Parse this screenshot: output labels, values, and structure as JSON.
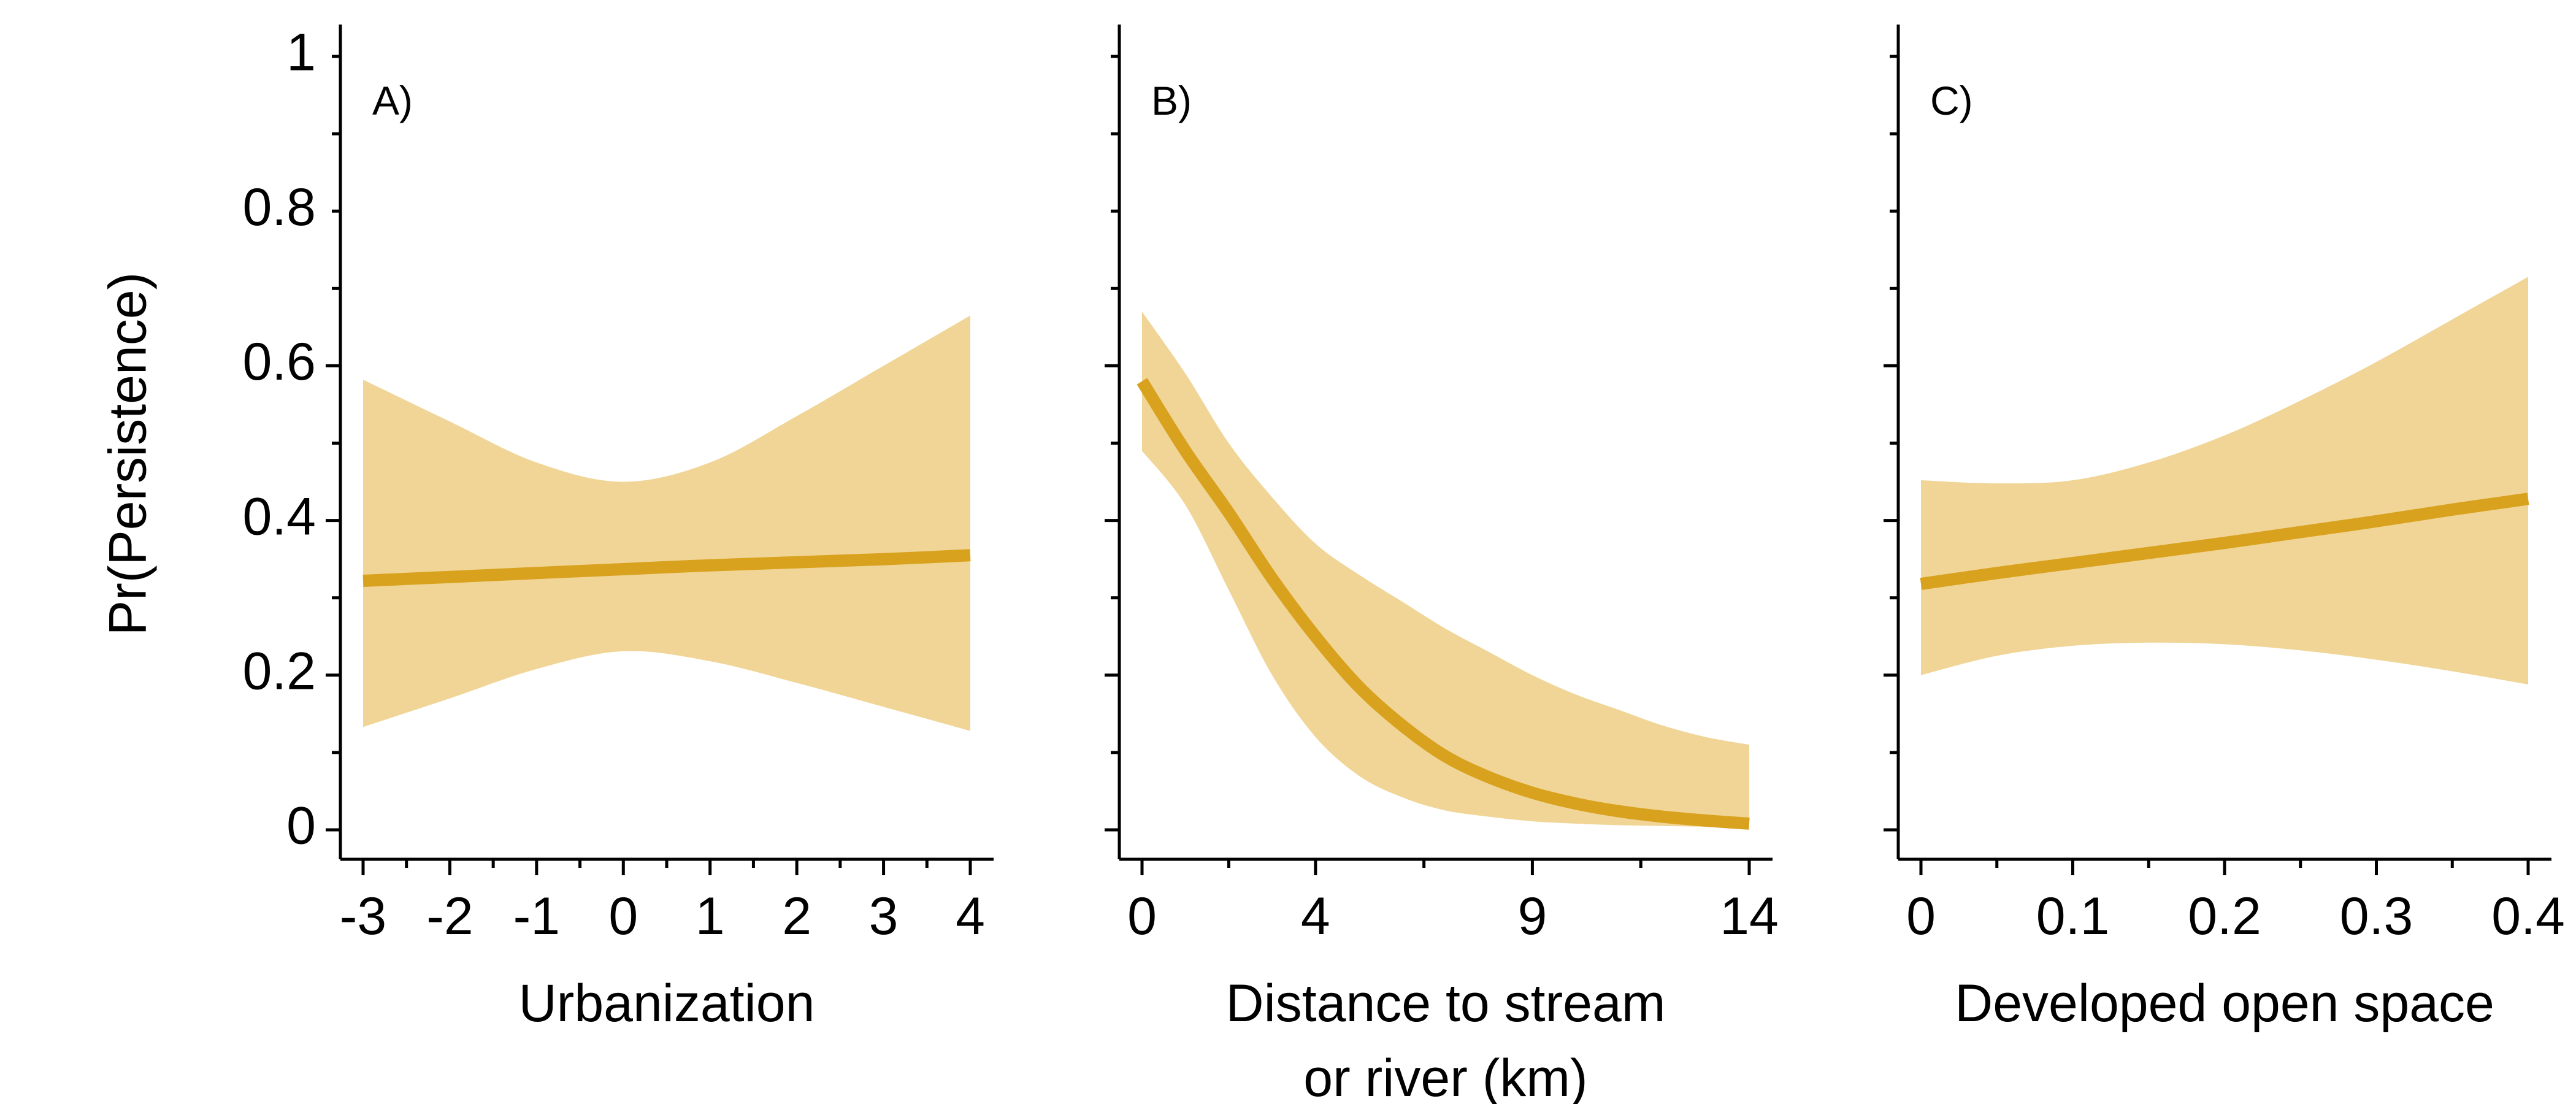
{
  "figure": {
    "ylabel": "Pr(Persistence)",
    "y_ticks": [
      0,
      0.2,
      0.4,
      0.6,
      0.8,
      1
    ],
    "y_tick_labels": [
      "0",
      "0.2",
      "0.4",
      "0.6",
      "0.8",
      "1"
    ],
    "colors": {
      "line": "#D9A21E",
      "band": "#F0D596",
      "axis": "#000000"
    }
  },
  "chart_data": [
    {
      "type": "line",
      "panel_label": "A)",
      "xlabel": [
        "Urbanization"
      ],
      "xlim": [
        -3,
        4
      ],
      "ylim": [
        0,
        1
      ],
      "x_ticks": [
        -3,
        -2,
        -1,
        0,
        1,
        2,
        3,
        4
      ],
      "x_tick_labels": [
        "-3",
        "-2",
        "-1",
        "0",
        "1",
        "2",
        "3",
        "4"
      ],
      "x": [
        -3,
        -2,
        -1,
        0,
        1,
        2,
        3,
        4
      ],
      "series": [
        {
          "values": [
            0.322,
            0.327,
            0.332,
            0.337,
            0.342,
            0.346,
            0.35,
            0.355
          ],
          "lower": [
            0.133,
            0.17,
            0.208,
            0.231,
            0.218,
            0.19,
            0.159,
            0.128
          ],
          "upper": [
            0.582,
            0.528,
            0.475,
            0.45,
            0.475,
            0.535,
            0.6,
            0.665
          ]
        }
      ]
    },
    {
      "type": "line",
      "panel_label": "B)",
      "xlabel": [
        "Distance to stream",
        "or river (km)"
      ],
      "xlim": [
        0,
        14
      ],
      "ylim": [
        0,
        1
      ],
      "x_ticks": [
        0,
        4,
        9,
        14
      ],
      "x_tick_labels": [
        "0",
        "4",
        "9",
        "14"
      ],
      "x": [
        0,
        1,
        2,
        3,
        4,
        5,
        6,
        7,
        8,
        9,
        10,
        11,
        12,
        13,
        14
      ],
      "series": [
        {
          "values": [
            0.58,
            0.49,
            0.41,
            0.325,
            0.25,
            0.185,
            0.135,
            0.095,
            0.068,
            0.048,
            0.034,
            0.024,
            0.017,
            0.012,
            0.008
          ],
          "lower": [
            0.49,
            0.42,
            0.31,
            0.2,
            0.12,
            0.07,
            0.042,
            0.025,
            0.017,
            0.011,
            0.008,
            0.006,
            0.005,
            0.004,
            0.003
          ],
          "upper": [
            0.67,
            0.59,
            0.5,
            0.43,
            0.37,
            0.33,
            0.295,
            0.26,
            0.23,
            0.2,
            0.175,
            0.155,
            0.135,
            0.12,
            0.11
          ]
        }
      ]
    },
    {
      "type": "line",
      "panel_label": "C)",
      "xlabel": [
        "Developed open space"
      ],
      "xlim": [
        0,
        0.4
      ],
      "ylim": [
        0,
        1
      ],
      "x_ticks": [
        0,
        0.1,
        0.2,
        0.3,
        0.4
      ],
      "x_tick_labels": [
        "0",
        "0.1",
        "0.2",
        "0.3",
        "0.4"
      ],
      "x": [
        0,
        0.05,
        0.1,
        0.15,
        0.2,
        0.25,
        0.3,
        0.35,
        0.4
      ],
      "series": [
        {
          "values": [
            0.318,
            0.332,
            0.345,
            0.358,
            0.371,
            0.385,
            0.399,
            0.414,
            0.428
          ],
          "lower": [
            0.2,
            0.225,
            0.238,
            0.242,
            0.24,
            0.232,
            0.22,
            0.205,
            0.188
          ],
          "upper": [
            0.452,
            0.448,
            0.452,
            0.475,
            0.51,
            0.555,
            0.605,
            0.66,
            0.715
          ]
        }
      ]
    }
  ]
}
